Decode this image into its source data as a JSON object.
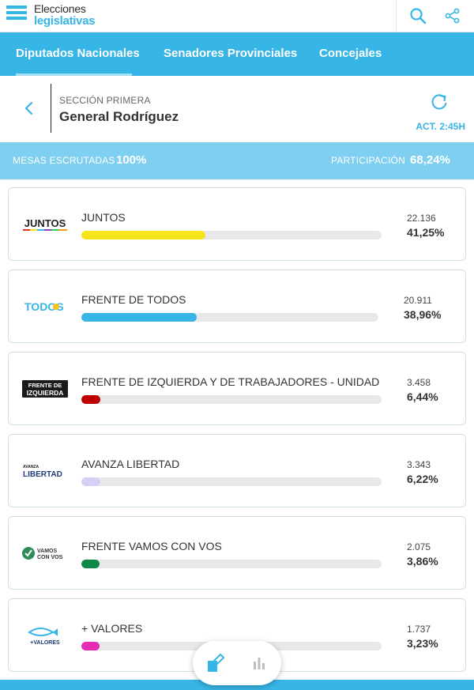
{
  "header": {
    "logo_line1": "Elecciones",
    "logo_line2": "legislativas",
    "icons": [
      "search-icon",
      "share-icon"
    ]
  },
  "tabs": [
    {
      "label": "Diputados Nacionales",
      "active": true
    },
    {
      "label": "Senadores Provinciales",
      "active": false
    },
    {
      "label": "Concejales",
      "active": false
    }
  ],
  "section": {
    "kicker": "SECCIÓN PRIMERA",
    "title": "General Rodríguez",
    "update": "ACT. 2:45H"
  },
  "stats": {
    "mesas_label": "MESAS ESCRUTADAS",
    "mesas_value": "100%",
    "part_label": "PARTICIPACIÓN",
    "part_value": "68,24%"
  },
  "results": [
    {
      "party": "JUNTOS",
      "logo_text": "JUNTOS",
      "votes": "22.136",
      "pct": "41,25%",
      "fraction": 0.4125,
      "color": "#f6e51b"
    },
    {
      "party": "FRENTE DE TODOS",
      "logo_text": "TODOS",
      "votes": "20.911",
      "pct": "38,96%",
      "fraction": 0.3896,
      "color": "#36b5e6"
    },
    {
      "party": "FRENTE DE IZQUIERDA Y DE TRABAJADORES - UNIDAD",
      "logo_text": "FRENTE DE IZQUIERDA",
      "votes": "3.458",
      "pct": "6,44%",
      "fraction": 0.0644,
      "color": "#c00000"
    },
    {
      "party": "AVANZA LIBERTAD",
      "logo_text": "AVANZA LIBERTAD",
      "votes": "3.343",
      "pct": "6,22%",
      "fraction": 0.0622,
      "color": "#d6d0f5"
    },
    {
      "party": "FRENTE VAMOS CON VOS",
      "logo_text": "VAMOS CON VOS",
      "votes": "2.075",
      "pct": "3,86%",
      "fraction": 0.0386,
      "color": "#0d8a4a"
    },
    {
      "party": "+ VALORES",
      "logo_text": "+VALORES",
      "votes": "1.737",
      "pct": "3,23%",
      "fraction": 0.0323,
      "color": "#e62bb5"
    }
  ],
  "colors": {
    "accent": "#36b5e6",
    "stats_band": "#7fcff0"
  }
}
